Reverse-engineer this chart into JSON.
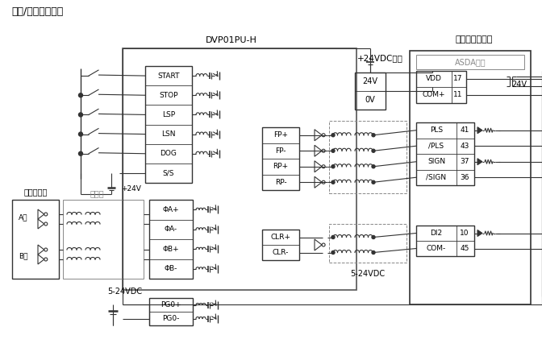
{
  "title": "输入/输出回路配线",
  "dvp_label": "DVP01PU-H",
  "vdc24_label": "+24VDC输入",
  "servo_label": "台达伺服驱动器",
  "asda_label": "ASDA系列",
  "plc_inputs": [
    "START",
    "STOP",
    "LSP",
    "LSN",
    "DOG",
    "S/S"
  ],
  "plc_outputs_fp": [
    "FP+",
    "FP-",
    "RP+",
    "RP-"
  ],
  "plc_outputs_clr": [
    "CLR+",
    "CLR-"
  ],
  "servo_top": [
    "VDD",
    "COM+"
  ],
  "servo_top_nums": [
    "17",
    "11"
  ],
  "servo_pulse": [
    "PLS",
    "/PLS",
    "SIGN",
    "/SIGN"
  ],
  "servo_pulse_nums": [
    "41",
    "43",
    "37",
    "36"
  ],
  "servo_clr": [
    "DI2",
    "COM-"
  ],
  "servo_clr_nums": [
    "10",
    "45"
  ],
  "handwheel_label": "手摇轮脉波",
  "isolation_label": "隔离线",
  "phase_a": "A相",
  "phase_b": "B相",
  "phi_labels": [
    "ΦA+",
    "ΦA-",
    "ΦB+",
    "ΦB-"
  ],
  "pg0_labels": [
    "PG0+",
    "PG0-"
  ],
  "vdc_5_24": "5-24VDC",
  "vdc_5_24b": "5-24VDC",
  "vdc_24": "+24V",
  "bg_color": "#ffffff",
  "line_color": "#555555",
  "box_color": "#333333",
  "text_color": "#000000",
  "gray_color": "#888888"
}
